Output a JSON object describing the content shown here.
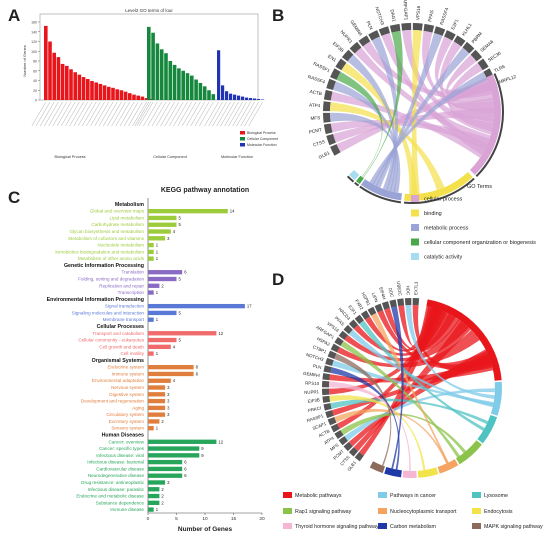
{
  "panel_letters": {
    "a": "A",
    "b": "B",
    "c": "C",
    "d": "D"
  },
  "colors": {
    "bp": "#e8161b",
    "cc": "#16883d",
    "mf": "#2232b4",
    "cat_metabolism": "#9ccb3b",
    "cat_gip": "#8a6bc4",
    "cat_eip": "#5a78d6",
    "cat_cp": "#f06b6b",
    "cat_os": "#e07e3d",
    "cat_hd": "#27a55b",
    "go_cellular_process": "#d9a3d6",
    "go_binding": "#f3e04a",
    "go_metabolic_process": "#9aa3d6",
    "go_ccob": "#4aa84a",
    "go_catalytic": "#a6dcef",
    "kegg_metabolic": "#e8161b",
    "kegg_rap1": "#8bc34a",
    "kegg_thyroid": "#f4b6d2",
    "kegg_cancer": "#7fcbe8",
    "kegg_nucleo": "#f4a460",
    "kegg_carbon": "#1f3aa8",
    "kegg_lysosome": "#4fc3c1",
    "kegg_endocytosis": "#f3e34a",
    "kegg_mapk": "#8c6a5c"
  },
  "panel_a": {
    "title": "Level2 GO terms of lour",
    "ylabel": "Number of Genes",
    "groups": [
      "Biological Process",
      "Cellular Component",
      "Molecular Function"
    ],
    "legend": [
      "Biological Process",
      "Cellular Component",
      "Molecular Function"
    ]
  },
  "panel_b": {
    "genes": [
      "GLB1",
      "CTSS",
      "PCMT",
      "MFS",
      "ATP4",
      "ACTB",
      "RASSF4",
      "RASSF1",
      "EN1",
      "EIF3B",
      "NUPR1",
      "GEMIN4",
      "PLN",
      "NOTCH3",
      "DAG1",
      "ARFGAP1",
      "VPS16",
      "PFAS",
      "RASSF4",
      "E2F1",
      "KLHL1",
      "PBRM",
      "SEMA6",
      "SEC36",
      "TLR6",
      "MRPL12"
    ],
    "legend_title": "GO Terms",
    "legend": [
      "cellular process",
      "binding",
      "metabolic process",
      "cellular component organization or biogenesis",
      "catalytic activity"
    ]
  },
  "panel_d": {
    "genes": [
      "GLB1",
      "CTSS",
      "PCMT",
      "MFS",
      "ATP4",
      "ACTB",
      "SCAP1",
      "RASSF1",
      "PRKCI",
      "EIF3B",
      "NUPR1",
      "RPS10",
      "GEMIN4",
      "PLN",
      "NOTCH3",
      "CTBP1",
      "HSPA2",
      "ARFGAP1",
      "VPS16",
      "PFAS",
      "HACD3",
      "E2F1",
      "FXR2",
      "HSPB1",
      "LIPN",
      "EIF4H",
      "DDC",
      "UBE2C",
      "HDC",
      "EXTL3"
    ],
    "legend": [
      "Metabolic pathways",
      "Rap1 signaling pathway",
      "Thyroid hormone signaling pathway",
      "Pathways in cancer",
      "Nucleocytoplasmic transport",
      "Carbon metabolism",
      "Lysosome",
      "Endocytosis",
      "MAPK signaling pathway"
    ]
  },
  "chart_data": [
    {
      "type": "bar",
      "panel": "A",
      "title": "Level2 GO terms of lour",
      "ylabel": "Number of Genes",
      "ylim": [
        0,
        160
      ],
      "series": [
        {
          "name": "Biological Process",
          "values": [
            152,
            120,
            97,
            88,
            74,
            70,
            63,
            57,
            52,
            47,
            43,
            39,
            36,
            33,
            30,
            27,
            25,
            22,
            20,
            17,
            14,
            11,
            9,
            7,
            4,
            2
          ]
        },
        {
          "name": "Cellular Component",
          "values": [
            150,
            138,
            116,
            104,
            96,
            80,
            72,
            65,
            60,
            55,
            50,
            42,
            35,
            28,
            20,
            12
          ]
        },
        {
          "name": "Molecular Function",
          "values": [
            102,
            30,
            18,
            13,
            11,
            9,
            7,
            5,
            4,
            3,
            2,
            1
          ]
        }
      ]
    },
    {
      "type": "bar",
      "panel": "C",
      "title": "KEGG pathway annotation",
      "xlabel": "Number of Genes",
      "xlim": [
        0,
        20
      ],
      "xticks": [
        0,
        5,
        10,
        15,
        20
      ],
      "groups": [
        {
          "name": "Metabolism",
          "color_key": "cat_metabolism",
          "items": [
            {
              "label": "Global and overview maps",
              "value": 14
            },
            {
              "label": "Lipid metabolism",
              "value": 5
            },
            {
              "label": "Carbohydrate metabolism",
              "value": 5
            },
            {
              "label": "Glycan biosynthesis and metabolism",
              "value": 4
            },
            {
              "label": "Metabolism of cofactors and vitamins",
              "value": 3
            },
            {
              "label": "Nucleotide metabolism",
              "value": 1
            },
            {
              "label": "Xenobiotics biodegradation and metabolism",
              "value": 1
            },
            {
              "label": "Metabolism of other amino acids",
              "value": 1
            }
          ]
        },
        {
          "name": "Genetic Information Processing",
          "color_key": "cat_gip",
          "items": [
            {
              "label": "Translation",
              "value": 6
            },
            {
              "label": "Folding, sorting and degradation",
              "value": 5
            },
            {
              "label": "Replication and repair",
              "value": 2
            },
            {
              "label": "Transcription",
              "value": 1
            }
          ]
        },
        {
          "name": "Environmental Information Processing",
          "color_key": "cat_eip",
          "items": [
            {
              "label": "Signal transduction",
              "value": 17
            },
            {
              "label": "Signaling molecules and interaction",
              "value": 5
            },
            {
              "label": "Membrane transport",
              "value": 1
            }
          ]
        },
        {
          "name": "Cellular Processes",
          "color_key": "cat_cp",
          "items": [
            {
              "label": "Transport and catabolism",
              "value": 12
            },
            {
              "label": "Cellular community - eukaryotes",
              "value": 5
            },
            {
              "label": "Cell growth and death",
              "value": 4
            },
            {
              "label": "Cell motility",
              "value": 1
            }
          ]
        },
        {
          "name": "Organismal Systems",
          "color_key": "cat_os",
          "items": [
            {
              "label": "Endocrine system",
              "value": 8
            },
            {
              "label": "Immune system",
              "value": 8
            },
            {
              "label": "Environmental adaptation",
              "value": 4
            },
            {
              "label": "Nervous system",
              "value": 3
            },
            {
              "label": "Digestive system",
              "value": 3
            },
            {
              "label": "Development and regeneration",
              "value": 3
            },
            {
              "label": "Aging",
              "value": 3
            },
            {
              "label": "Circulatory system",
              "value": 3
            },
            {
              "label": "Excretory system",
              "value": 2
            },
            {
              "label": "Sensory system",
              "value": 1
            }
          ]
        },
        {
          "name": "Human Diseases",
          "color_key": "cat_hd",
          "items": [
            {
              "label": "Cancer: overview",
              "value": 12
            },
            {
              "label": "Cancer: specific types",
              "value": 9
            },
            {
              "label": "Infectious disease: viral",
              "value": 9
            },
            {
              "label": "Infectious disease: bacterial",
              "value": 6
            },
            {
              "label": "Cardiovascular disease",
              "value": 6
            },
            {
              "label": "Neurodegenerative disease",
              "value": 6
            },
            {
              "label": "Drug resistance: antineoplastic",
              "value": 3
            },
            {
              "label": "Infectious disease: parasitic",
              "value": 2
            },
            {
              "label": "Endocrine and metabolic disease",
              "value": 2
            },
            {
              "label": "Substance dependence",
              "value": 2
            },
            {
              "label": "Immune disease",
              "value": 1
            }
          ]
        }
      ]
    }
  ]
}
